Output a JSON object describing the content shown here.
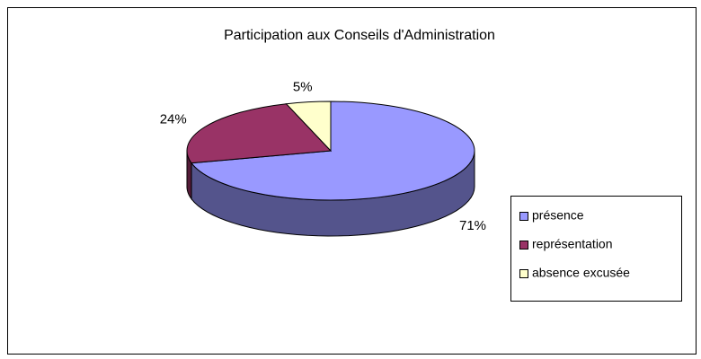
{
  "chart_data": {
    "type": "pie",
    "title": "Participation aux Conseils d'Administration",
    "categories": [
      "présence",
      "représentation",
      "absence excusée"
    ],
    "values": [
      71,
      24,
      5
    ],
    "value_labels": [
      "71%",
      "24%",
      "5%"
    ],
    "colors": [
      "#9999ff",
      "#993366",
      "#ffffcc"
    ],
    "legend": "right"
  }
}
